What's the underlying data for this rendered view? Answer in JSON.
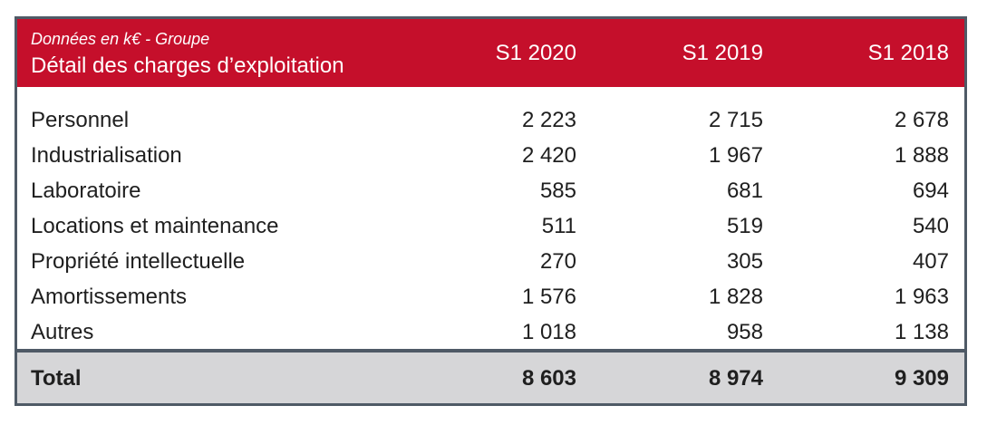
{
  "table": {
    "subtitle": "Données en k€ - Groupe",
    "title": "Détail des charges d’exploitation",
    "columns": [
      "S1 2020",
      "S1 2019",
      "S1 2018"
    ],
    "rows": [
      {
        "label": "Personnel",
        "values": [
          "2 223",
          "2 715",
          "2 678"
        ]
      },
      {
        "label": "Industrialisation",
        "values": [
          "2 420",
          "1 967",
          "1 888"
        ]
      },
      {
        "label": "Laboratoire",
        "values": [
          "585",
          "681",
          "694"
        ]
      },
      {
        "label": "Locations et maintenance",
        "values": [
          "511",
          "519",
          "540"
        ]
      },
      {
        "label": "Propriété intellectuelle",
        "values": [
          "270",
          "305",
          "407"
        ]
      },
      {
        "label": "Amortissements",
        "values": [
          "1 576",
          "1 828",
          "1 963"
        ]
      },
      {
        "label": "Autres",
        "values": [
          "1 018",
          "958",
          "1 138"
        ]
      }
    ],
    "total": {
      "label": "Total",
      "values": [
        "8 603",
        "8 974",
        "9 309"
      ]
    }
  },
  "colors": {
    "header_background": "#c50f2b",
    "header_text": "#ffffff",
    "frame_border": "#4f5a66",
    "total_background": "#d6d6d8"
  }
}
